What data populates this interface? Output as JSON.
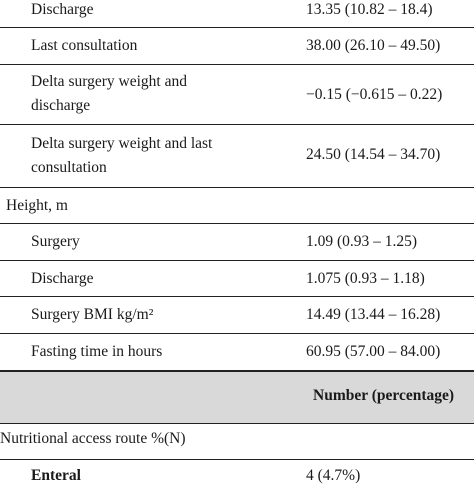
{
  "rows": [
    {
      "label": "Discharge",
      "value": "13.35 (10.82 – 18.4)"
    },
    {
      "label": "Last consultation",
      "value": "38.00 (26.10 – 49.50)"
    },
    {
      "label_line1": "Delta surgery weight and",
      "label_line2": "discharge",
      "value": "−0.15 (−0.615 – 0.22)"
    },
    {
      "label_line1": "Delta surgery weight and last",
      "label_line2": "consultation",
      "value": "24.50 (14.54 – 34.70)"
    },
    {
      "label": "Height, m",
      "value": ""
    },
    {
      "label": "Surgery",
      "value": "1.09 (0.93 – 1.25)"
    },
    {
      "label": "Discharge",
      "value": "1.075 (0.93 – 1.18)"
    },
    {
      "label": "Surgery BMI kg/m²",
      "value": "14.49 (13.44 – 16.28)"
    },
    {
      "label": "Fasting time in hours",
      "value": "60.95 (57.00 – 84.00)"
    }
  ],
  "header": {
    "column_label": "Number (percentage)"
  },
  "section": {
    "label": "Nutritional access route %(N)"
  },
  "partial_row": {
    "label": "Enteral",
    "value": "4 (4.7%)"
  }
}
